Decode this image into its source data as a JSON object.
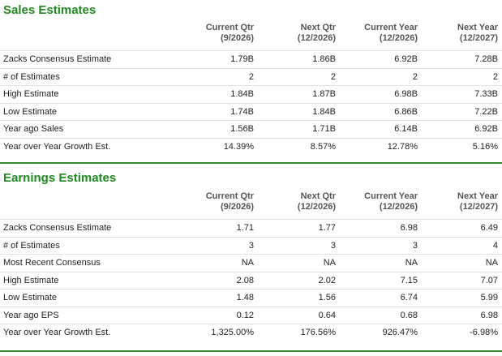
{
  "sections": [
    {
      "title": "Sales Estimates",
      "headers": [
        {
          "line1": "Current Qtr",
          "line2": "(9/2026)"
        },
        {
          "line1": "Next Qtr",
          "line2": "(12/2026)"
        },
        {
          "line1": "Current Year",
          "line2": "(12/2026)"
        },
        {
          "line1": "Next Year",
          "line2": "(12/2027)"
        }
      ],
      "rows": [
        [
          "Zacks Consensus Estimate",
          "1.79B",
          "1.86B",
          "6.92B",
          "7.28B"
        ],
        [
          "# of Estimates",
          "2",
          "2",
          "2",
          "2"
        ],
        [
          "High Estimate",
          "1.84B",
          "1.87B",
          "6.98B",
          "7.33B"
        ],
        [
          "Low Estimate",
          "1.74B",
          "1.84B",
          "6.86B",
          "7.22B"
        ],
        [
          "Year ago Sales",
          "1.56B",
          "1.71B",
          "6.14B",
          "6.92B"
        ],
        [
          "Year over Year Growth Est.",
          "14.39%",
          "8.57%",
          "12.78%",
          "5.16%"
        ]
      ]
    },
    {
      "title": "Earnings Estimates",
      "headers": [
        {
          "line1": "Current Qtr",
          "line2": "(9/2026)"
        },
        {
          "line1": "Next Qtr",
          "line2": "(12/2026)"
        },
        {
          "line1": "Current Year",
          "line2": "(12/2026)"
        },
        {
          "line1": "Next Year",
          "line2": "(12/2027)"
        }
      ],
      "rows": [
        [
          "Zacks Consensus Estimate",
          "1.71",
          "1.77",
          "6.98",
          "6.49"
        ],
        [
          "# of Estimates",
          "3",
          "3",
          "3",
          "4"
        ],
        [
          "Most Recent Consensus",
          "NA",
          "NA",
          "NA",
          "NA"
        ],
        [
          "High Estimate",
          "2.08",
          "2.02",
          "7.15",
          "7.07"
        ],
        [
          "Low Estimate",
          "1.48",
          "1.56",
          "6.74",
          "5.99"
        ],
        [
          "Year ago EPS",
          "0.12",
          "0.64",
          "0.68",
          "6.98"
        ],
        [
          "Year over Year Growth Est.",
          "1,325.00%",
          "176.56%",
          "926.47%",
          "-6.98%"
        ]
      ]
    }
  ]
}
